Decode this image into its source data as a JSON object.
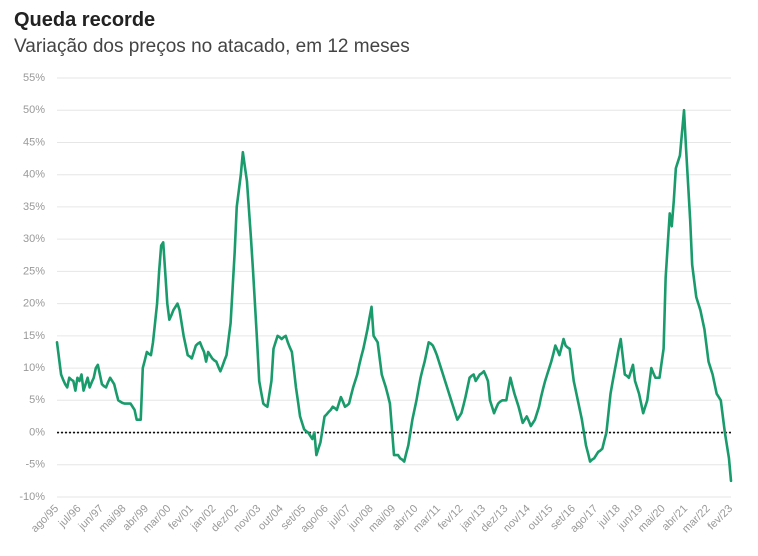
{
  "chart_data": {
    "type": "line",
    "title": "Queda recorde",
    "subtitle": "Variação dos preços no atacado, em 12 meses",
    "color": "#1a9b6c",
    "grid": true,
    "zero_line": true,
    "ylim": [
      -10,
      55
    ],
    "yticks": [
      {
        "value": -10,
        "label": "-10%"
      },
      {
        "value": -5,
        "label": "-5%"
      },
      {
        "value": 0,
        "label": "0%"
      },
      {
        "value": 5,
        "label": "5%"
      },
      {
        "value": 10,
        "label": "10%"
      },
      {
        "value": 15,
        "label": "15%"
      },
      {
        "value": 20,
        "label": "20%"
      },
      {
        "value": 25,
        "label": "25%"
      },
      {
        "value": 30,
        "label": "30%"
      },
      {
        "value": 35,
        "label": "35%"
      },
      {
        "value": 40,
        "label": "40%"
      },
      {
        "value": 45,
        "label": "45%"
      },
      {
        "value": 50,
        "label": "50%"
      },
      {
        "value": 55,
        "label": "55%"
      }
    ],
    "categories": [
      "ago/95",
      null,
      null,
      null,
      null,
      null,
      null,
      null,
      null,
      null,
      null,
      "jul/96",
      null,
      null,
      null,
      null,
      null,
      null,
      null,
      null,
      null,
      null,
      "jun/97",
      null,
      null,
      null,
      null,
      null,
      null,
      null,
      null,
      null,
      null,
      "mai/98",
      null,
      null,
      null,
      null,
      null,
      null,
      null,
      null,
      null,
      null,
      "abr/99",
      null,
      null,
      null,
      null,
      null,
      null,
      null,
      null,
      null,
      null,
      "mar/00",
      null,
      null,
      null,
      null,
      null,
      null,
      null,
      null,
      null,
      null,
      "fev/01",
      null,
      null,
      null,
      null,
      null,
      null,
      null,
      null,
      null,
      null,
      "jan/02",
      null,
      null,
      null,
      null,
      null,
      null,
      null,
      null,
      null,
      null,
      "dez/02",
      null,
      null,
      null,
      null,
      null,
      null,
      null,
      null,
      null,
      null,
      "nov/03",
      null,
      null,
      null,
      null,
      null,
      null,
      null,
      null,
      null,
      null,
      "out/04",
      null,
      null,
      null,
      null,
      null,
      null,
      null,
      null,
      null,
      null,
      "set/05",
      null,
      null,
      null,
      null,
      null,
      null,
      null,
      null,
      null,
      null,
      "ago/06",
      null,
      null,
      null,
      null,
      null,
      null,
      null,
      null,
      null,
      null,
      "jul/07",
      null,
      null,
      null,
      null,
      null,
      null,
      null,
      null,
      null,
      null,
      "jun/08",
      null,
      null,
      null,
      null,
      null,
      null,
      null,
      null,
      null,
      null,
      "mai/09",
      null,
      null,
      null,
      null,
      null,
      null,
      null,
      null,
      null,
      null,
      "abr/10",
      null,
      null,
      null,
      null,
      null,
      null,
      null,
      null,
      null,
      null,
      "mar/11",
      null,
      null,
      null,
      null,
      null,
      null,
      null,
      null,
      null,
      null,
      "fev/12",
      null,
      null,
      null,
      null,
      null,
      null,
      null,
      null,
      null,
      null,
      "jan/13",
      null,
      null,
      null,
      null,
      null,
      null,
      null,
      null,
      null,
      null,
      "dez/13",
      null,
      null,
      null,
      null,
      null,
      null,
      null,
      null,
      null,
      null,
      "nov/14",
      null,
      null,
      null,
      null,
      null,
      null,
      null,
      null,
      null,
      null,
      "out/15",
      null,
      null,
      null,
      null,
      null,
      null,
      null,
      null,
      null,
      null,
      "set/16",
      null,
      null,
      null,
      null,
      null,
      null,
      null,
      null,
      null,
      null,
      "ago/17",
      null,
      null,
      null,
      null,
      null,
      null,
      null,
      null,
      null,
      null,
      "jul/18",
      null,
      null,
      null,
      null,
      null,
      null,
      null,
      null,
      null,
      null,
      "jun/19",
      null,
      null,
      null,
      null,
      null,
      null,
      null,
      null,
      null,
      null,
      "mai/20",
      null,
      null,
      null,
      null,
      null,
      null,
      null,
      null,
      null,
      null,
      "abr/21",
      null,
      null,
      null,
      null,
      null,
      null,
      null,
      null,
      null,
      null,
      "mar/22",
      null,
      null,
      null,
      null,
      null,
      null,
      null,
      null,
      null,
      null,
      "fev/23"
    ],
    "values": [
      14,
      11.5,
      9,
      8.2,
      7.5,
      7,
      8.5,
      8.2,
      8,
      6.5,
      8.5,
      8,
      9,
      6.5,
      7.5,
      8.5,
      7,
      7.8,
      8.5,
      10,
      10.5,
      9,
      7.5,
      7.2,
      7,
      7.8,
      8.5,
      8,
      7.5,
      6.2,
      5,
      4.8,
      4.6,
      4.5,
      4.5,
      4.5,
      4.5,
      4,
      3.5,
      2,
      2,
      2,
      10,
      11.2,
      12.5,
      12.2,
      12,
      14,
      17,
      20,
      25,
      29,
      29.5,
      24.8,
      20,
      17.5,
      18.2,
      19,
      19.5,
      20,
      19,
      17,
      15,
      13.5,
      12,
      11.8,
      11.5,
      12.5,
      13.5,
      13.8,
      14,
      13.2,
      12.5,
      11,
      12.5,
      12,
      11.5,
      11.2,
      11,
      10.2,
      9.5,
      10.3,
      11.2,
      12,
      14.5,
      17,
      22.5,
      28,
      35,
      37.5,
      40,
      43.5,
      41.2,
      39,
      34.5,
      30,
      25,
      19.5,
      14,
      8,
      6.2,
      4.5,
      4.2,
      4,
      6,
      8,
      13,
      14,
      15,
      14.8,
      14.5,
      14.8,
      15,
      14,
      13.2,
      12.5,
      9.8,
      7,
      4.8,
      2.5,
      1.5,
      0.5,
      0.2,
      0,
      -0.5,
      -1,
      0,
      -3.5,
      -2.5,
      -1.5,
      0.5,
      2.5,
      2.8,
      3.2,
      3.5,
      4,
      3.8,
      3.5,
      4.5,
      5.5,
      4.8,
      4,
      4.2,
      4.5,
      5.8,
      7,
      8,
      9,
      10.5,
      11.8,
      13,
      14.5,
      16,
      17.8,
      19.5,
      15,
      14.5,
      14,
      11.5,
      9,
      8,
      7,
      5.8,
      4.5,
      0.5,
      -3.5,
      -3.5,
      -3.5,
      -4,
      -4.2,
      -4.5,
      -3.2,
      -2,
      0,
      2,
      3.5,
      5,
      6.8,
      8.5,
      9.8,
      11,
      12.5,
      14,
      13.8,
      13.5,
      12.8,
      12,
      11,
      10,
      9,
      8,
      7,
      6,
      5,
      4,
      3,
      2,
      2.5,
      3,
      4.2,
      5.5,
      7,
      8.5,
      8.8,
      9,
      8,
      8.5,
      9,
      9.2,
      9.5,
      8.8,
      8,
      5,
      4,
      3,
      3.8,
      4.5,
      4.8,
      5,
      5,
      5,
      6.8,
      8.5,
      7.2,
      6,
      5,
      4,
      2.8,
      1.5,
      2,
      2.5,
      1.8,
      1,
      1.5,
      2,
      3,
      4,
      5.5,
      6.8,
      8,
      9,
      10,
      11,
      12.2,
      13.5,
      12.8,
      12,
      13.2,
      14.5,
      13.5,
      13.2,
      13,
      10.5,
      8,
      6.5,
      5,
      3.5,
      2,
      0,
      -2,
      -3.2,
      -4.5,
      -4.2,
      -4,
      -3.5,
      -3,
      -2.8,
      -2.5,
      -1.2,
      0,
      3,
      6,
      7.8,
      9.5,
      11.2,
      13,
      14.5,
      11.8,
      9,
      8.8,
      8.5,
      9.5,
      10.5,
      8,
      7,
      6,
      4.5,
      3,
      4,
      5,
      7.5,
      10,
      9.2,
      8.5,
      8.5,
      8.5,
      10.8,
      13,
      24,
      29,
      34,
      32,
      36,
      41,
      42,
      43,
      46.5,
      50,
      44,
      38.5,
      33,
      26,
      23.5,
      21,
      20,
      19,
      17.5,
      16,
      13.5,
      11,
      10,
      9,
      7.5,
      6,
      5.5,
      5,
      2.5,
      0,
      -2,
      -4,
      -7.5
    ]
  }
}
